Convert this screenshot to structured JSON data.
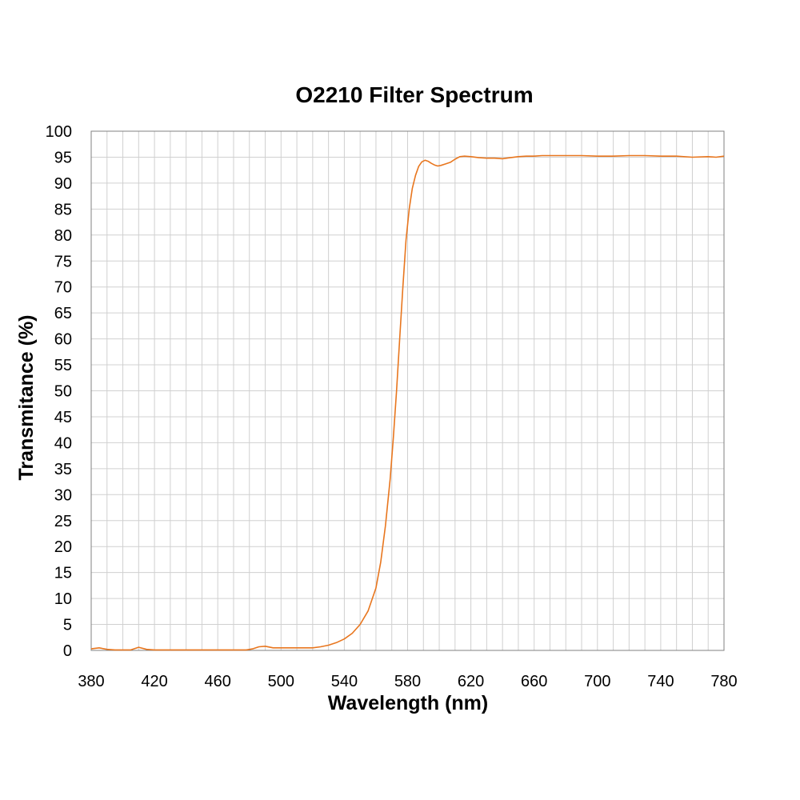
{
  "chart_data": {
    "type": "line",
    "title": "O2210 Filter Spectrum",
    "xlabel": "Wavelength (nm)",
    "ylabel": "Transmitance (%)",
    "xlim": [
      380,
      780
    ],
    "ylim": [
      0,
      100
    ],
    "x_ticks": [
      380,
      420,
      460,
      500,
      540,
      580,
      620,
      660,
      700,
      740,
      780
    ],
    "y_ticks": [
      0,
      5,
      10,
      15,
      20,
      25,
      30,
      35,
      40,
      45,
      50,
      55,
      60,
      65,
      70,
      75,
      80,
      85,
      90,
      95,
      100
    ],
    "grid": true,
    "line_color": "#e8761e",
    "series": [
      {
        "x": [
          380,
          385,
          390,
          395,
          400,
          405,
          410,
          415,
          420,
          430,
          440,
          450,
          460,
          470,
          478,
          482,
          486,
          490,
          495,
          500,
          505,
          510,
          515,
          520,
          525,
          530,
          535,
          540,
          545,
          550,
          555,
          560,
          563,
          566,
          569,
          571,
          573,
          575,
          577,
          579,
          581,
          583,
          585,
          587,
          589,
          591,
          593,
          595,
          597,
          599,
          601,
          604,
          607,
          610,
          613,
          616,
          620,
          625,
          630,
          635,
          640,
          645,
          650,
          655,
          660,
          665,
          670,
          675,
          680,
          690,
          700,
          710,
          720,
          730,
          740,
          750,
          760,
          770,
          775,
          780
        ],
        "y": [
          0.3,
          0.5,
          0.2,
          0.1,
          0.1,
          0.1,
          0.6,
          0.2,
          0.1,
          0.1,
          0.1,
          0.1,
          0.1,
          0.1,
          0.1,
          0.3,
          0.7,
          0.8,
          0.5,
          0.5,
          0.5,
          0.5,
          0.5,
          0.5,
          0.7,
          1.0,
          1.5,
          2.2,
          3.3,
          5.0,
          7.6,
          12.0,
          17.0,
          24.0,
          33.0,
          41.0,
          50.0,
          60.0,
          70.0,
          79.0,
          85.0,
          89.0,
          91.5,
          93.2,
          94.1,
          94.4,
          94.2,
          93.8,
          93.5,
          93.3,
          93.4,
          93.7,
          94.0,
          94.6,
          95.1,
          95.2,
          95.1,
          94.9,
          94.8,
          94.8,
          94.7,
          94.9,
          95.1,
          95.2,
          95.2,
          95.3,
          95.3,
          95.3,
          95.3,
          95.3,
          95.2,
          95.2,
          95.3,
          95.3,
          95.2,
          95.2,
          95.0,
          95.1,
          95.0,
          95.2
        ]
      }
    ]
  }
}
